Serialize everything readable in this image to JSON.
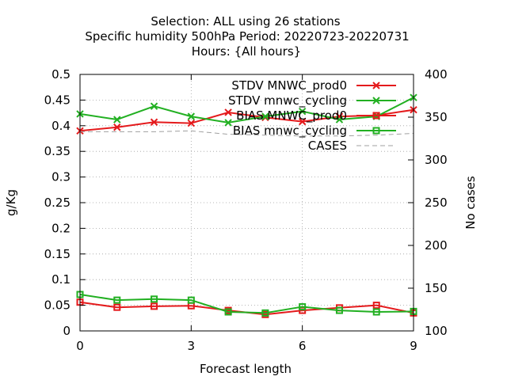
{
  "chart_data": {
    "type": "line",
    "title_lines": [
      "Selection: ALL using    26 stations",
      "Specific humidity 500hPa   Period: 20220723-20220731",
      "Hours: {All hours}"
    ],
    "xlabel": "Forecast length",
    "ylabel": "g/Kg",
    "y2label": "No cases",
    "xlim": [
      0,
      9
    ],
    "ylim": [
      0,
      0.5
    ],
    "y2lim": [
      100,
      400
    ],
    "x_ticks": [
      "0",
      "3",
      "6",
      "9"
    ],
    "y_ticks": [
      "0",
      "0.05",
      "0.1",
      "0.15",
      "0.2",
      "0.25",
      "0.3",
      "0.35",
      "0.4",
      "0.45",
      "0.5"
    ],
    "y2_ticks": [
      "100",
      "150",
      "200",
      "250",
      "300",
      "350",
      "400"
    ],
    "grid": true,
    "legend_position": "top-right",
    "x": [
      0,
      1,
      2,
      3,
      4,
      5,
      6,
      7,
      8,
      9
    ],
    "series": [
      {
        "name": "STDV MNWC_prod0",
        "axis": "y1",
        "color": "#e41a1c",
        "marker": "x",
        "values": [
          0.39,
          0.397,
          0.407,
          0.405,
          0.426,
          0.416,
          0.408,
          0.418,
          0.42,
          0.431
        ]
      },
      {
        "name": "STDV mnwc_cycling",
        "axis": "y1",
        "color": "#22b022",
        "marker": "x",
        "values": [
          0.423,
          0.412,
          0.438,
          0.418,
          0.406,
          0.418,
          0.428,
          0.412,
          0.418,
          0.455
        ]
      },
      {
        "name": "BIAS MNWC_prod0",
        "axis": "y1",
        "color": "#e41a1c",
        "marker": "square",
        "values": [
          0.056,
          0.046,
          0.048,
          0.049,
          0.04,
          0.032,
          0.04,
          0.045,
          0.05,
          0.035
        ]
      },
      {
        "name": "BIAS mnwc_cycling",
        "axis": "y1",
        "color": "#22b022",
        "marker": "square",
        "values": [
          0.071,
          0.06,
          0.062,
          0.06,
          0.037,
          0.035,
          0.047,
          0.04,
          0.037,
          0.038
        ]
      },
      {
        "name": "CASES",
        "axis": "y2",
        "color": "#a0a0a0",
        "marker": "none",
        "dashed": true,
        "values": [
          333,
          333,
          333,
          334,
          330,
          329,
          328,
          328,
          329,
          331
        ]
      }
    ]
  }
}
